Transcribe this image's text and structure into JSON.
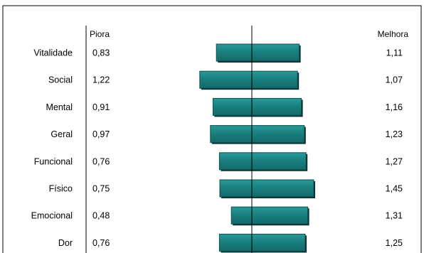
{
  "chart_data": {
    "type": "bar",
    "orientation": "diverging-horizontal",
    "categories": [
      "Vitalidade",
      "Social",
      "Mental",
      "Geral",
      "Funcional",
      "Físico",
      "Emocional",
      "Dor"
    ],
    "series": [
      {
        "name": "Piora",
        "values": [
          "0,83",
          "1,22",
          "0,91",
          "0,97",
          "0,76",
          "0,75",
          "0,48",
          "0,76"
        ],
        "numeric": [
          0.83,
          1.22,
          0.91,
          0.97,
          0.76,
          0.75,
          0.48,
          0.76
        ]
      },
      {
        "name": "Melhora",
        "values": [
          "1,11",
          "1,07",
          "1,16",
          "1,23",
          "1,27",
          "1,45",
          "1,31",
          "1,25"
        ],
        "numeric": [
          1.11,
          1.07,
          1.16,
          1.23,
          1.27,
          1.45,
          1.31,
          1.25
        ]
      }
    ],
    "bar_color": "#1a8080",
    "bar_color_dark": "#0c4f4f",
    "grid": false,
    "legend": "none"
  }
}
